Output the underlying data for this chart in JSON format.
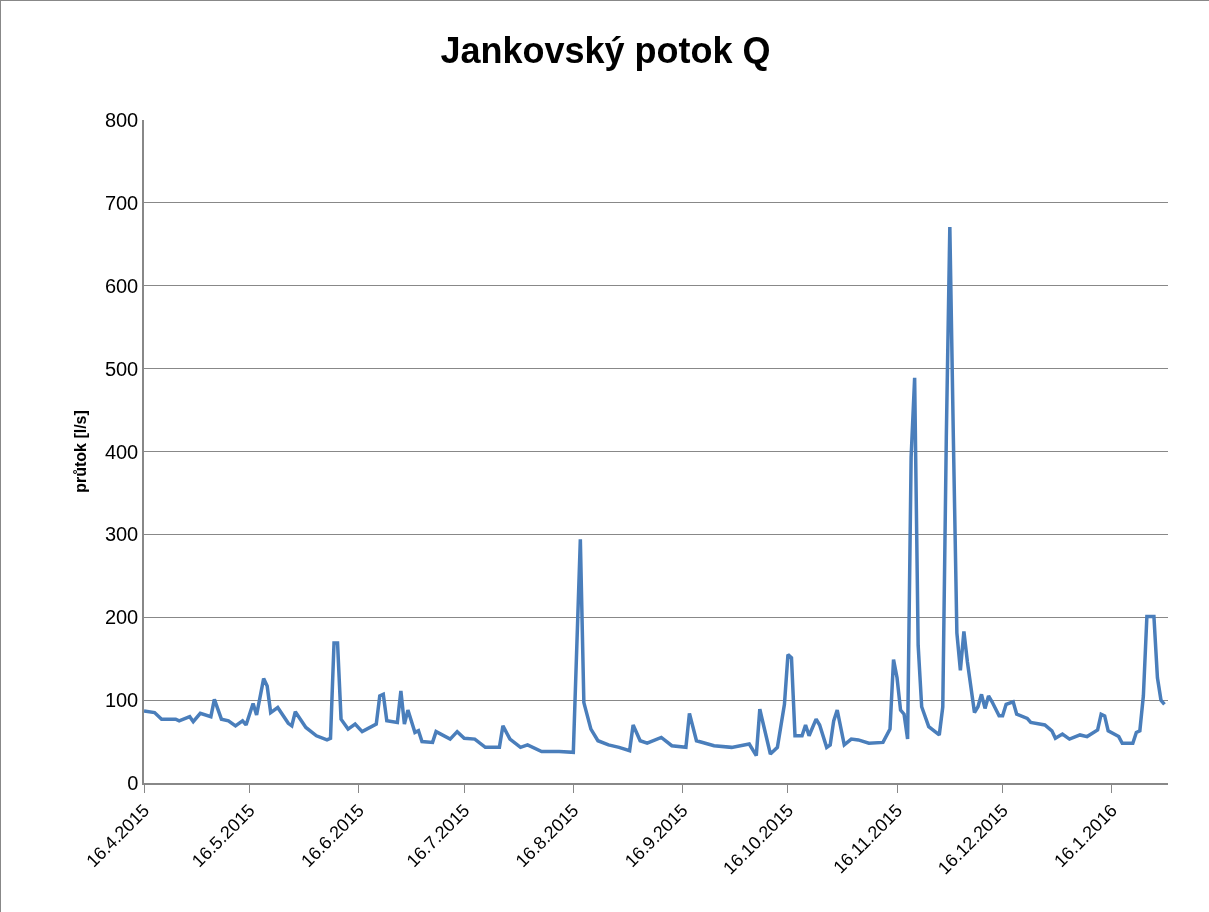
{
  "chart_data": {
    "type": "line",
    "title": "Jankovský potok Q",
    "ylabel": "průtok [l/s]",
    "x": [
      "2015-04-16",
      "2015-04-19",
      "2015-04-21",
      "2015-04-25",
      "2015-04-26",
      "2015-04-29",
      "2015-04-30",
      "2015-05-02",
      "2015-05-05",
      "2015-05-06",
      "2015-05-08",
      "2015-05-10",
      "2015-05-12",
      "2015-05-14",
      "2015-05-15",
      "2015-05-17",
      "2015-05-18",
      "2015-05-20",
      "2015-05-21",
      "2015-05-22",
      "2015-05-24",
      "2015-05-27",
      "2015-05-28",
      "2015-05-29",
      "2015-06-01",
      "2015-06-04",
      "2015-06-07",
      "2015-06-08",
      "2015-06-09",
      "2015-06-10",
      "2015-06-11",
      "2015-06-13",
      "2015-06-15",
      "2015-06-17",
      "2015-06-21",
      "2015-06-22",
      "2015-06-23",
      "2015-06-24",
      "2015-06-27",
      "2015-06-28",
      "2015-06-29",
      "2015-06-30",
      "2015-07-02",
      "2015-07-03",
      "2015-07-04",
      "2015-07-07",
      "2015-07-08",
      "2015-07-12",
      "2015-07-14",
      "2015-07-16",
      "2015-07-19",
      "2015-07-22",
      "2015-07-26",
      "2015-07-27",
      "2015-07-29",
      "2015-08-01",
      "2015-08-03",
      "2015-08-07",
      "2015-08-12",
      "2015-08-16",
      "2015-08-18",
      "2015-08-19",
      "2015-08-21",
      "2015-08-23",
      "2015-08-26",
      "2015-08-29",
      "2015-09-01",
      "2015-09-02",
      "2015-09-04",
      "2015-09-06",
      "2015-09-10",
      "2015-09-13",
      "2015-09-17",
      "2015-09-18",
      "2015-09-20",
      "2015-09-25",
      "2015-09-30",
      "2015-10-05",
      "2015-10-07",
      "2015-10-08",
      "2015-10-11",
      "2015-10-13",
      "2015-10-15",
      "2015-10-16",
      "2015-10-17",
      "2015-10-18",
      "2015-10-20",
      "2015-10-21",
      "2015-10-22",
      "2015-10-24",
      "2015-10-25",
      "2015-10-27",
      "2015-10-28",
      "2015-10-29",
      "2015-10-30",
      "2015-11-01",
      "2015-11-03",
      "2015-11-05",
      "2015-11-08",
      "2015-11-12",
      "2015-11-14",
      "2015-11-15",
      "2015-11-16",
      "2015-11-17",
      "2015-11-18",
      "2015-11-19",
      "2015-11-20",
      "2015-11-21",
      "2015-11-22",
      "2015-11-23",
      "2015-11-25",
      "2015-11-28",
      "2015-11-29",
      "2015-11-30",
      "2015-12-01",
      "2015-12-02",
      "2015-12-03",
      "2015-12-04",
      "2015-12-05",
      "2015-12-06",
      "2015-12-08",
      "2015-12-09",
      "2015-12-10",
      "2015-12-11",
      "2015-12-12",
      "2015-12-13",
      "2015-12-15",
      "2015-12-16",
      "2015-12-17",
      "2015-12-19",
      "2015-12-20",
      "2015-12-23",
      "2015-12-24",
      "2015-12-28",
      "2015-12-30",
      "2015-12-31",
      "2016-01-02",
      "2016-01-04",
      "2016-01-07",
      "2016-01-09",
      "2016-01-12",
      "2016-01-13",
      "2016-01-14",
      "2016-01-15",
      "2016-01-18",
      "2016-01-19",
      "2016-01-22",
      "2016-01-23",
      "2016-01-24",
      "2016-01-25",
      "2016-01-26",
      "2016-01-28",
      "2016-01-29",
      "2016-01-30",
      "2016-01-31"
    ],
    "series": [
      {
        "color": "#4a7ebb",
        "values": [
          87,
          85,
          77,
          77,
          75,
          80,
          74,
          84,
          80,
          101,
          77,
          75,
          69,
          75,
          70,
          96,
          82,
          126,
          117,
          85,
          91,
          72,
          69,
          86,
          67,
          57,
          52,
          54,
          169,
          169,
          77,
          65,
          71,
          62,
          71,
          105,
          107,
          75,
          73,
          111,
          71,
          88,
          61,
          63,
          50,
          49,
          62,
          53,
          62,
          54,
          53,
          43,
          43,
          69,
          53,
          43,
          46,
          38,
          38,
          37,
          294,
          97,
          65,
          51,
          46,
          43,
          39,
          70,
          51,
          48,
          55,
          45,
          43,
          84,
          51,
          45,
          43,
          47,
          33,
          89,
          35,
          43,
          95,
          155,
          151,
          57,
          57,
          70,
          57,
          77,
          70,
          43,
          46,
          75,
          88,
          46,
          53,
          52,
          48,
          49,
          65,
          149,
          127,
          88,
          83,
          53,
          393,
          489,
          166,
          92,
          68,
          58,
          92,
          417,
          671,
          417,
          181,
          136,
          183,
          146,
          85,
          92,
          107,
          90,
          105,
          98,
          81,
          81,
          95,
          98,
          83,
          78,
          73,
          70,
          63,
          54,
          59,
          53,
          58,
          56,
          64,
          83,
          81,
          63,
          56,
          48,
          48,
          61,
          63,
          105,
          201,
          201,
          127,
          100,
          95
        ]
      }
    ],
    "xlim": [
      "2015-04-16",
      "2016-02-01"
    ],
    "xticks": [
      {
        "value": "2015-04-16",
        "label": "16.4.2015"
      },
      {
        "value": "2015-05-16",
        "label": "16.5.2015"
      },
      {
        "value": "2015-06-16",
        "label": "16.6.2015"
      },
      {
        "value": "2015-07-16",
        "label": "16.7.2015"
      },
      {
        "value": "2015-08-16",
        "label": "16.8.2015"
      },
      {
        "value": "2015-09-16",
        "label": "16.9.2015"
      },
      {
        "value": "2015-10-16",
        "label": "16.10.2015"
      },
      {
        "value": "2015-11-16",
        "label": "16.11.2015"
      },
      {
        "value": "2015-12-16",
        "label": "16.12.2015"
      },
      {
        "value": "2016-01-16",
        "label": "16.1.2016"
      }
    ],
    "ylim": [
      0,
      800
    ],
    "yticks": [
      0,
      100,
      200,
      300,
      400,
      500,
      600,
      700,
      800
    ],
    "grid": "y",
    "marker": "none",
    "line_style": "solid"
  }
}
